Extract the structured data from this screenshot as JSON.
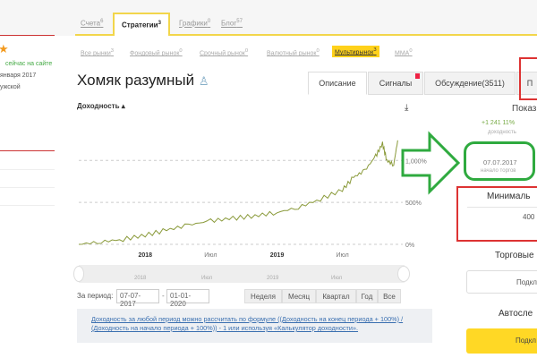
{
  "top_tabs": [
    {
      "label": "Счета",
      "count": "6"
    },
    {
      "label": "Стратегии",
      "count": "3"
    },
    {
      "label": "Графики",
      "count": "0"
    },
    {
      "label": "Блог",
      "count": "57"
    }
  ],
  "market_tabs": [
    {
      "label": "Все рынки",
      "count": "3"
    },
    {
      "label": "Фондовый рынок",
      "count": "0"
    },
    {
      "label": "Срочный рынок",
      "count": "0"
    },
    {
      "label": "Валютный рынок",
      "count": "0"
    },
    {
      "label": "Мультирынок",
      "count": "3"
    },
    {
      "label": "MMA",
      "count": "0"
    }
  ],
  "sidebar": {
    "status": "сейчас на сайте",
    "registered": "января 2017",
    "gender": "ужской"
  },
  "strategy": {
    "title": "Хомяк разумный"
  },
  "content_tabs": [
    "Описание",
    "Сигналы",
    "Обсуждение(3511)",
    "П"
  ],
  "chart_title": "Доходность",
  "chart_data": {
    "type": "line",
    "x_ticks": [
      "2018",
      "Июл",
      "2019",
      "Июл"
    ],
    "y_ticks": [
      "0%",
      "500%",
      "1,000%"
    ],
    "ylim": [
      0,
      1300
    ],
    "grid": "horizontal dashed",
    "color": "#8a9a3a",
    "points": [
      [
        "2017-07",
        0
      ],
      [
        "2017-09",
        30
      ],
      [
        "2017-11",
        60
      ],
      [
        "2018-01",
        110
      ],
      [
        "2018-03",
        170
      ],
      [
        "2018-05",
        230
      ],
      [
        "2018-07",
        280
      ],
      [
        "2018-09",
        310
      ],
      [
        "2018-11",
        340
      ],
      [
        "2019-01",
        380
      ],
      [
        "2019-03",
        440
      ],
      [
        "2019-05",
        540
      ],
      [
        "2019-07",
        650
      ],
      [
        "2019-08",
        800
      ],
      [
        "2019-09",
        880
      ],
      [
        "2019-10",
        1050
      ],
      [
        "2019-10-20",
        1200
      ],
      [
        "2019-11",
        1000
      ],
      [
        "2019-11-20",
        950
      ],
      [
        "2019-12",
        1240
      ]
    ]
  },
  "navigator": {
    "labels": [
      "2018",
      "Июл",
      "2019",
      "Июл"
    ]
  },
  "period": {
    "label": "За период:",
    "from": "07-07-2017",
    "to": "01-01-2020",
    "buttons": [
      "Неделя",
      "Месяц",
      "Квартал",
      "Год",
      "Все"
    ]
  },
  "formula_note": "Доходность за любой период можно рассчитать по формуле ((Доходность на конец периода + 100%) / (Доходность на начало периода + 100%)) - 1 или используя «Калькулятор доходности».",
  "right": {
    "header": "Показ",
    "yield_value": "+1 241 11%",
    "yield_label": "доходность",
    "start_date": "07.07.2017",
    "start_label": "начало торгов",
    "min_label": "Минималь",
    "min_value": "400",
    "trading_label": "Торговые",
    "connect1": "Подкл",
    "auto_label": "Автосле",
    "connect2": "Подкл"
  }
}
